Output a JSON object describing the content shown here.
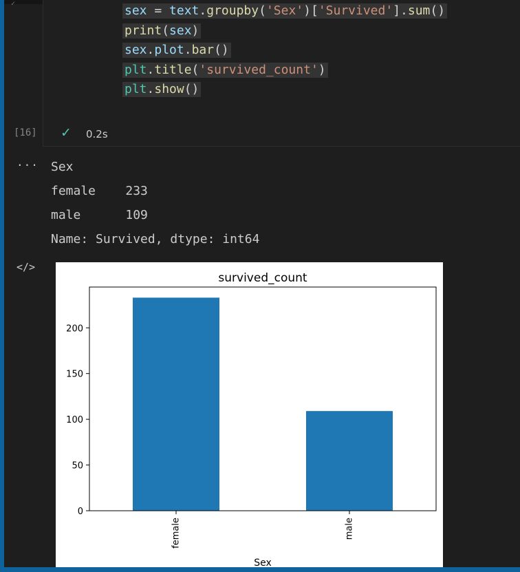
{
  "editor": {
    "gutter_mark": "✓",
    "code_lines": [
      [
        {
          "t": "sex",
          "c": "var"
        },
        {
          "t": " = ",
          "c": "punc"
        },
        {
          "t": "text",
          "c": "var"
        },
        {
          "t": ".",
          "c": "punc"
        },
        {
          "t": "groupby",
          "c": "fn"
        },
        {
          "t": "(",
          "c": "punc"
        },
        {
          "t": "'Sex'",
          "c": "str"
        },
        {
          "t": ")[",
          "c": "punc"
        },
        {
          "t": "'Survived'",
          "c": "str"
        },
        {
          "t": "].",
          "c": "punc"
        },
        {
          "t": "sum",
          "c": "fn"
        },
        {
          "t": "()",
          "c": "punc"
        }
      ],
      [
        {
          "t": "print",
          "c": "fn"
        },
        {
          "t": "(",
          "c": "punc"
        },
        {
          "t": "sex",
          "c": "var"
        },
        {
          "t": ")",
          "c": "punc"
        }
      ],
      [
        {
          "t": "sex",
          "c": "var"
        },
        {
          "t": ".",
          "c": "punc"
        },
        {
          "t": "plot",
          "c": "var"
        },
        {
          "t": ".",
          "c": "punc"
        },
        {
          "t": "bar",
          "c": "fn"
        },
        {
          "t": "()",
          "c": "punc"
        }
      ],
      [
        {
          "t": "plt",
          "c": "kw"
        },
        {
          "t": ".",
          "c": "punc"
        },
        {
          "t": "title",
          "c": "fn"
        },
        {
          "t": "(",
          "c": "punc"
        },
        {
          "t": "'survived_count'",
          "c": "str"
        },
        {
          "t": ")",
          "c": "punc"
        }
      ],
      [
        {
          "t": "plt",
          "c": "kw"
        },
        {
          "t": ".",
          "c": "punc"
        },
        {
          "t": "show",
          "c": "fn"
        },
        {
          "t": "()",
          "c": "punc"
        }
      ]
    ],
    "execution_count": "[16]",
    "check_icon": "✓",
    "duration": "0.2s"
  },
  "output": {
    "dots": "...",
    "text_lines": [
      "Sex",
      "female    233",
      "male      109",
      "Name: Survived, dtype: int64"
    ],
    "code_icon": "</>"
  },
  "chart_data": {
    "type": "bar",
    "title": "survived_count",
    "xlabel": "Sex",
    "ylabel": "",
    "categories": [
      "female",
      "male"
    ],
    "values": [
      233,
      109
    ],
    "ylim": [
      0,
      244.6
    ],
    "yticks": [
      0,
      50,
      100,
      150,
      200
    ],
    "bar_color": "#1f77b4",
    "grid": false
  }
}
